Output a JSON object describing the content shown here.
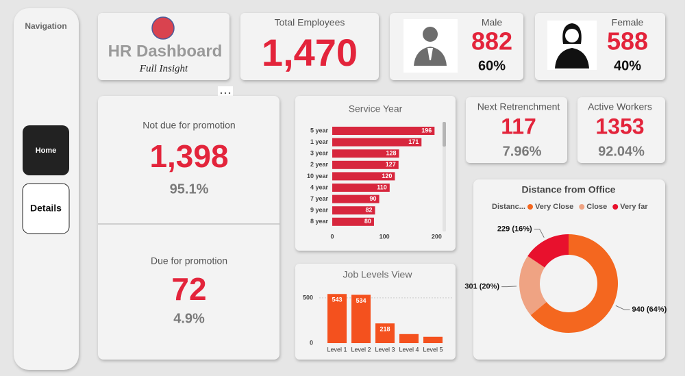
{
  "navigation": {
    "title": "Navigation",
    "buttons": [
      "Home",
      "Details"
    ]
  },
  "header": {
    "title": "HR Dashboard",
    "subtitle": "Full Insight"
  },
  "total": {
    "label": "Total Employees",
    "value": "1,470"
  },
  "male": {
    "label": "Male",
    "count": "882",
    "share": "60%"
  },
  "female": {
    "label": "Female",
    "count": "588",
    "share": "40%"
  },
  "promotion": {
    "not_due": {
      "label": "Not due for promotion",
      "value": "1,398",
      "share": "95.1%"
    },
    "due": {
      "label": "Due for promotion",
      "value": "72",
      "share": "4.9%"
    }
  },
  "retrenchment": {
    "label": "Next Retrenchment",
    "value": "117",
    "share": "7.96%"
  },
  "active": {
    "label": "Active Workers",
    "value": "1353",
    "share": "92.04%"
  },
  "chart_data": [
    {
      "type": "hbar",
      "title": "Service Year",
      "categories": [
        "5 year",
        "1 year",
        "3 year",
        "2 year",
        "10 year",
        "4 year",
        "7 year",
        "9 year",
        "8 year"
      ],
      "values": [
        196,
        171,
        128,
        127,
        120,
        110,
        90,
        82,
        80
      ],
      "color": "#d7263d",
      "xlim": [
        0,
        210
      ],
      "xticks": [
        0,
        100,
        200
      ]
    },
    {
      "type": "bar",
      "title": "Job Levels View",
      "categories": [
        "Level 1",
        "Level 2",
        "Level 3",
        "Level 4",
        "Level 5"
      ],
      "values": [
        543,
        534,
        218,
        100,
        70
      ],
      "color": "#f4511e",
      "ylim": [
        0,
        560
      ],
      "yticks": [
        0,
        500
      ],
      "grid": true
    },
    {
      "type": "pie",
      "title": "Distance from Office",
      "legend_title": "Distanc...",
      "categories": [
        "Very Close",
        "Close",
        "Very far"
      ],
      "values": [
        940,
        301,
        229
      ],
      "value_labels": [
        "940 (64%)",
        "301 (20%)",
        "229 (16%)"
      ],
      "colors": [
        "#f4671f",
        "#efa383",
        "#e8112d"
      ]
    }
  ]
}
